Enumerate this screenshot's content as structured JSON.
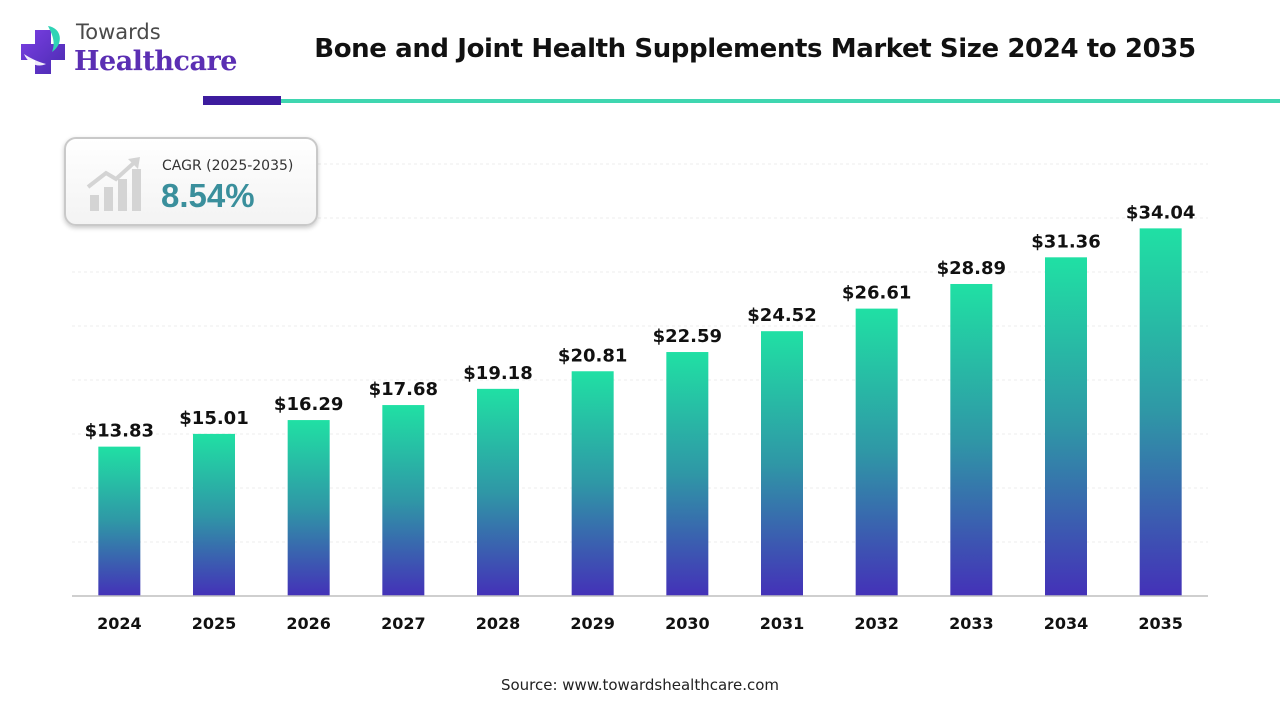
{
  "brand": {
    "line1": "Towards",
    "line2": "Healthcare"
  },
  "header": {
    "title": "Bone and Joint Health Supplements Market Size 2024 to 2035"
  },
  "cagr": {
    "label": "CAGR (2025-2035)",
    "value": "8.54%"
  },
  "footer": {
    "source": "Source: www.towardshealthcare.com"
  },
  "colors": {
    "bar_top": "#20e0a4",
    "bar_mid": "#2f97a6",
    "bar_bottom": "#4431b8",
    "accent_dark": "#3d1c9e",
    "accent_teal": "#3fd6b0",
    "cagr_value": "#3a8f9c"
  },
  "chart_data": {
    "type": "bar",
    "title": "Bone and Joint Health Supplements Market Size 2024 to 2035",
    "xlabel": "",
    "ylabel": "",
    "grid": true,
    "ylim": [
      0,
      40
    ],
    "categories": [
      "2024",
      "2025",
      "2026",
      "2027",
      "2028",
      "2029",
      "2030",
      "2031",
      "2032",
      "2033",
      "2034",
      "2035"
    ],
    "values": [
      13.83,
      15.01,
      16.29,
      17.68,
      19.18,
      20.81,
      22.59,
      24.52,
      26.61,
      28.89,
      31.36,
      34.04
    ],
    "data_labels": [
      "$13.83",
      "$15.01",
      "$16.29",
      "$17.68",
      "$19.18",
      "$20.81",
      "$22.59",
      "$24.52",
      "$26.61",
      "$28.89",
      "$31.36",
      "$34.04"
    ]
  }
}
